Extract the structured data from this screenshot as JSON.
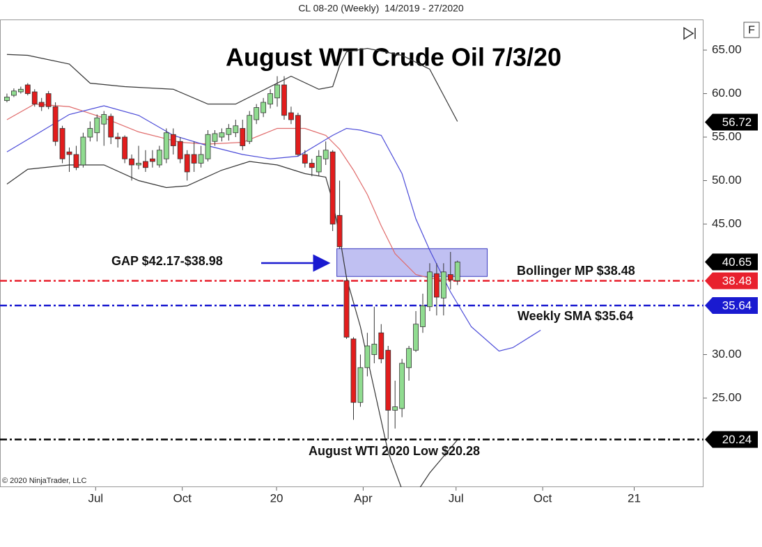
{
  "chart_data": {
    "type": "candlestick",
    "header": "CL 08-20 (Weekly)  14/2019 - 27/2020",
    "title": "August WTI Crude Oil 7/3/20",
    "copyright": "© 2020 NinjaTrader, LLC",
    "f_button": "F",
    "annotations": {
      "gap": "GAP $42.17-$38.98",
      "bollinger": "Bollinger MP $38.48",
      "sma": "Weekly SMA $35.64",
      "low": "August WTI 2020 Low $20.28"
    },
    "up_color": "#90dc90",
    "down_color": "#e21d1d",
    "x": [
      0,
      1,
      2,
      3,
      4,
      5,
      6,
      7,
      8,
      9,
      10,
      11,
      12,
      13,
      14,
      15,
      16,
      17,
      18,
      19,
      20,
      21,
      22,
      23,
      24,
      25,
      26,
      27,
      28,
      29,
      30,
      31,
      32,
      33,
      34,
      35,
      36,
      37,
      38,
      39,
      40,
      41,
      42,
      43,
      44,
      45,
      46,
      47,
      48,
      49,
      50,
      51,
      52,
      53,
      54,
      55,
      56,
      57,
      58,
      59,
      60,
      61,
      62,
      63,
      64,
      65
    ],
    "open": [
      59.2,
      59.8,
      60.2,
      61,
      60.2,
      59,
      60,
      58.5,
      56,
      53.3,
      53,
      51.8,
      55,
      55.5,
      56.5,
      57.4,
      55,
      55,
      52.5,
      51.8,
      52.2,
      52.5,
      51.8,
      52.5,
      55.3,
      54.5,
      53,
      53,
      52,
      52.5,
      54.5,
      55,
      55.3,
      55.5,
      56,
      54.5,
      57,
      57.8,
      58.8,
      59.5,
      61,
      57.8,
      57.5,
      53,
      52,
      51,
      52.5,
      53.3,
      46,
      38.5,
      31.8,
      24.5,
      28.5,
      30,
      32.5,
      30.5,
      23.6,
      23.8,
      28.5,
      30.5,
      33.2,
      35.5,
      39.3,
      36.5,
      39.2,
      38.5
    ],
    "high": [
      60,
      60.6,
      60.8,
      61.2,
      60.5,
      59.5,
      60.3,
      59,
      56.3,
      53.8,
      54,
      55.5,
      56.8,
      57.6,
      58,
      57.7,
      55.5,
      55.2,
      53,
      54,
      53.5,
      53.5,
      54,
      56,
      56,
      55,
      53.5,
      54.5,
      54,
      55.8,
      55.8,
      56,
      56.5,
      57,
      57,
      58,
      58.8,
      59.5,
      60.5,
      62,
      62,
      58.5,
      57.8,
      53.5,
      52.5,
      53.5,
      54.5,
      53.5,
      50,
      38.98,
      32,
      30,
      32.5,
      35.5,
      33.5,
      31,
      27,
      29.5,
      31,
      35,
      37,
      40.5,
      40.5,
      40.5,
      41.8,
      40.8
    ],
    "low": [
      59,
      59.6,
      60,
      59.8,
      58.5,
      58,
      58.2,
      54,
      52,
      51,
      51.2,
      51.5,
      54.5,
      54.5,
      54,
      54.2,
      53.8,
      52,
      50,
      51.3,
      51,
      51.5,
      51.5,
      52,
      53,
      52,
      50,
      51,
      51.5,
      52.2,
      54,
      54.5,
      54.6,
      55,
      53.5,
      54.2,
      56.5,
      57.3,
      58.3,
      58.5,
      57,
      56.5,
      52.8,
      51.5,
      50.5,
      50.5,
      51.8,
      44.2,
      42.17,
      31.8,
      22.5,
      24,
      27.5,
      29,
      29,
      20.28,
      21.5,
      22.8,
      27,
      30.3,
      32.5,
      35,
      34.5,
      34.5,
      37.5,
      38
    ],
    "close": [
      59.6,
      60.3,
      60.5,
      60,
      58.8,
      58.5,
      58.5,
      54.5,
      52.5,
      53,
      51.5,
      55,
      56,
      57.2,
      57.6,
      55,
      54.8,
      52.5,
      51.8,
      52,
      51.5,
      52.2,
      53.5,
      55.5,
      54,
      52.5,
      51,
      52,
      53,
      55.3,
      55.4,
      55.5,
      56,
      56.3,
      54,
      57.5,
      58.4,
      59,
      60,
      61,
      57.5,
      57,
      53,
      52,
      51.5,
      52.8,
      53.5,
      45,
      42.4,
      32,
      24.5,
      28.5,
      31,
      31.2,
      29.5,
      23.6,
      24,
      29,
      30.7,
      33.5,
      35.6,
      39.5,
      36.6,
      39.5,
      38.6,
      40.65
    ],
    "lines": [
      {
        "color": "#333333",
        "x": [
          0,
          3,
          9,
          12,
          17,
          24,
          29,
          33,
          37,
          41,
          45,
          47,
          48,
          49,
          52,
          57,
          61,
          65
        ],
        "values": [
          64.5,
          64.4,
          63.4,
          61.2,
          60.8,
          60.5,
          58.8,
          58.8,
          60.4,
          62,
          60.5,
          60.8,
          63.2,
          64.8,
          65.2,
          64.4,
          62.8,
          56.8
        ]
      },
      {
        "color": "#333333",
        "x": [
          0,
          3,
          9,
          14,
          19,
          23,
          26,
          31,
          35,
          39,
          43,
          46,
          47,
          48,
          49,
          51,
          53,
          55,
          57,
          59,
          61,
          65
        ],
        "values": [
          49.6,
          51.3,
          51.8,
          51.8,
          50,
          49.2,
          49.4,
          51.2,
          52.2,
          51.8,
          50.8,
          50.4,
          47.6,
          43.6,
          38.8,
          33.2,
          26,
          18.8,
          14.5,
          14,
          16.4,
          20.2
        ]
      },
      {
        "color": "#e06a6a",
        "x": [
          0,
          4,
          9,
          14,
          19,
          25,
          29,
          34,
          39,
          43,
          46,
          48,
          50,
          52,
          54,
          56,
          59,
          61,
          65
        ],
        "values": [
          57,
          58.8,
          58.5,
          57.2,
          55.6,
          54.4,
          54.2,
          54.4,
          56,
          56,
          55.2,
          53.6,
          51.2,
          48.4,
          44.8,
          41.6,
          39.2,
          38.8,
          38.48
        ]
      },
      {
        "color": "#4a4ad8",
        "x": [
          0,
          4,
          9,
          14,
          19,
          24,
          29,
          34,
          38,
          42,
          47,
          49,
          51,
          54,
          57,
          59,
          61,
          64,
          67,
          71,
          73,
          77
        ],
        "values": [
          53.3,
          55.2,
          57.6,
          58.6,
          57.5,
          55.2,
          54,
          53,
          52.5,
          52.8,
          55.2,
          56,
          55.8,
          55.2,
          50.8,
          45.6,
          42,
          37.2,
          33.2,
          30.4,
          30.8,
          32.8
        ]
      }
    ],
    "gap": {
      "x": [
        47.6,
        69.3
      ],
      "ylim": [
        38.98,
        42.17
      ],
      "color": "#8c8ce8"
    },
    "price_tags": [
      {
        "value": 56.72,
        "color": "#000000"
      },
      {
        "value": 40.65,
        "color": "#000000"
      },
      {
        "value": 38.48,
        "color": "#e8212e",
        "line": true
      },
      {
        "value": 35.64,
        "color": "#1a1ad0",
        "line": true
      },
      {
        "value": 20.24,
        "color": "#000000",
        "line": true
      }
    ],
    "xlim": [
      -1,
      100.5
    ],
    "xticks": [
      {
        "value": 12.8,
        "label": "Jul"
      },
      {
        "value": 25.3,
        "label": "Oct"
      },
      {
        "value": 38.9,
        "label": "20"
      },
      {
        "value": 51.4,
        "label": "Apr"
      },
      {
        "value": 64.8,
        "label": "Jul"
      },
      {
        "value": 77.3,
        "label": "Oct"
      },
      {
        "value": 90.5,
        "label": "21"
      }
    ],
    "ylim": [
      14.76,
      68.52
    ],
    "yticks": [
      {
        "value": 25,
        "label": "25.00"
      },
      {
        "value": 30,
        "label": "30.00"
      },
      {
        "value": 45,
        "label": "45.00"
      },
      {
        "value": 50,
        "label": "50.00"
      },
      {
        "value": 55,
        "label": "55.00"
      },
      {
        "value": 60,
        "label": "60.00"
      },
      {
        "value": 65,
        "label": "65.00"
      }
    ],
    "grid": false
  }
}
